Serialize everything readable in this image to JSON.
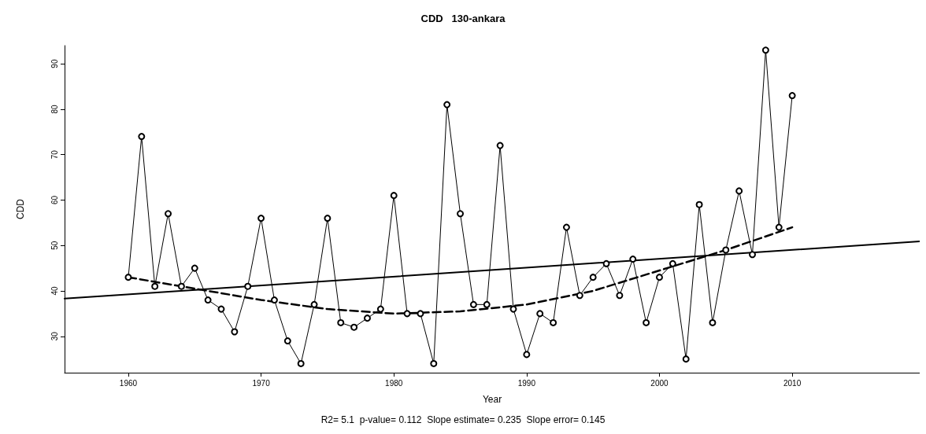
{
  "chart_data": {
    "type": "line",
    "title": "CDD   130-ankara",
    "xlabel": "Year",
    "ylabel": "CDD",
    "annotations": [
      "R2= 5.1  p-value= 0.112  Slope estimate= 0.235  Slope error= 0.145"
    ],
    "x": [
      1960,
      1961,
      1962,
      1963,
      1964,
      1965,
      1966,
      1967,
      1968,
      1969,
      1970,
      1971,
      1972,
      1973,
      1974,
      1975,
      1976,
      1977,
      1978,
      1979,
      1980,
      1981,
      1982,
      1983,
      1984,
      1985,
      1986,
      1987,
      1988,
      1989,
      1990,
      1991,
      1992,
      1993,
      1994,
      1995,
      1996,
      1997,
      1998,
      1999,
      2000,
      2001,
      2002,
      2003,
      2004,
      2005,
      2006,
      2007,
      2008,
      2009,
      2010
    ],
    "series": [
      {
        "color": "#000000",
        "marker": "circle",
        "line_style": "solid",
        "values": [
          43,
          74,
          41,
          57,
          41,
          45,
          38,
          36,
          31,
          41,
          56,
          38,
          29,
          24,
          37,
          56,
          33,
          32,
          34,
          36,
          61,
          35,
          35,
          24,
          81,
          57,
          37,
          37,
          72,
          36,
          26,
          35,
          33,
          54,
          39,
          43,
          46,
          39,
          47,
          33,
          43,
          46,
          25,
          59,
          33,
          49,
          62,
          48,
          93,
          54,
          83
        ]
      },
      {
        "type": "line",
        "color": "#000000",
        "marker": "none",
        "line_style": "solid",
        "x": [
          1955.2,
          2019.6
        ],
        "values": [
          38.3,
          50.9
        ]
      },
      {
        "type": "line",
        "color": "#000000",
        "marker": "none",
        "line_style": "dashed",
        "x": [
          1960,
          1965,
          1970,
          1975,
          1980,
          1985,
          1990,
          1995,
          2000,
          2005,
          2010
        ],
        "values": [
          43,
          40.5,
          38,
          36,
          35,
          35.5,
          37,
          40,
          44.5,
          49,
          54
        ]
      }
    ],
    "xlim": [
      1955.2,
      2019.6
    ],
    "xticks": [
      1960,
      1970,
      1980,
      1990,
      2000,
      2010
    ],
    "ylim": [
      22,
      94
    ],
    "yticks": [
      30,
      40,
      50,
      60,
      70,
      80,
      90
    ],
    "grid": false
  }
}
